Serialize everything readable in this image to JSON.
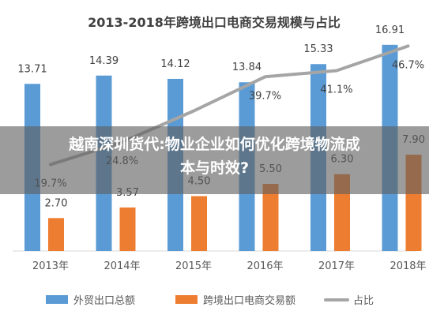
{
  "overlay": {
    "line1": "越南深圳货代:物业企业如何优化跨境物流成",
    "line2": "本与时效?"
  },
  "chart_data": {
    "type": "bar",
    "title": "2013-2018年跨境出口电商交易规模与占比",
    "categories": [
      "2013年",
      "2014年",
      "2015年",
      "2016年",
      "2017年",
      "2018年"
    ],
    "series": [
      {
        "name": "外贸出口总额",
        "type": "bar",
        "color": "#5b9bd5",
        "values": [
          13.71,
          14.39,
          14.12,
          13.84,
          15.33,
          16.91
        ],
        "labels": [
          "13.71",
          "14.39",
          "14.12",
          "13.84",
          "15.33",
          "16.91"
        ]
      },
      {
        "name": "跨境出口电商交易额",
        "type": "bar",
        "color": "#ed7d31",
        "values": [
          2.7,
          3.57,
          4.5,
          5.5,
          6.3,
          7.9
        ],
        "labels": [
          "2.70",
          "3.57",
          "4.50",
          "5.50",
          "6.30",
          "7.90"
        ]
      },
      {
        "name": "占比",
        "type": "line",
        "color": "#a5a5a5",
        "values": [
          19.7,
          24.8,
          31.9,
          39.7,
          41.1,
          46.7
        ],
        "labels": [
          "19.7%",
          "24.8%",
          "",
          "39.7%",
          "41.1%",
          "46.7%"
        ]
      }
    ],
    "ylim": [
      0,
      18
    ],
    "ylim_secondary": [
      0,
      50
    ],
    "grid": false,
    "legend": "bottom"
  }
}
